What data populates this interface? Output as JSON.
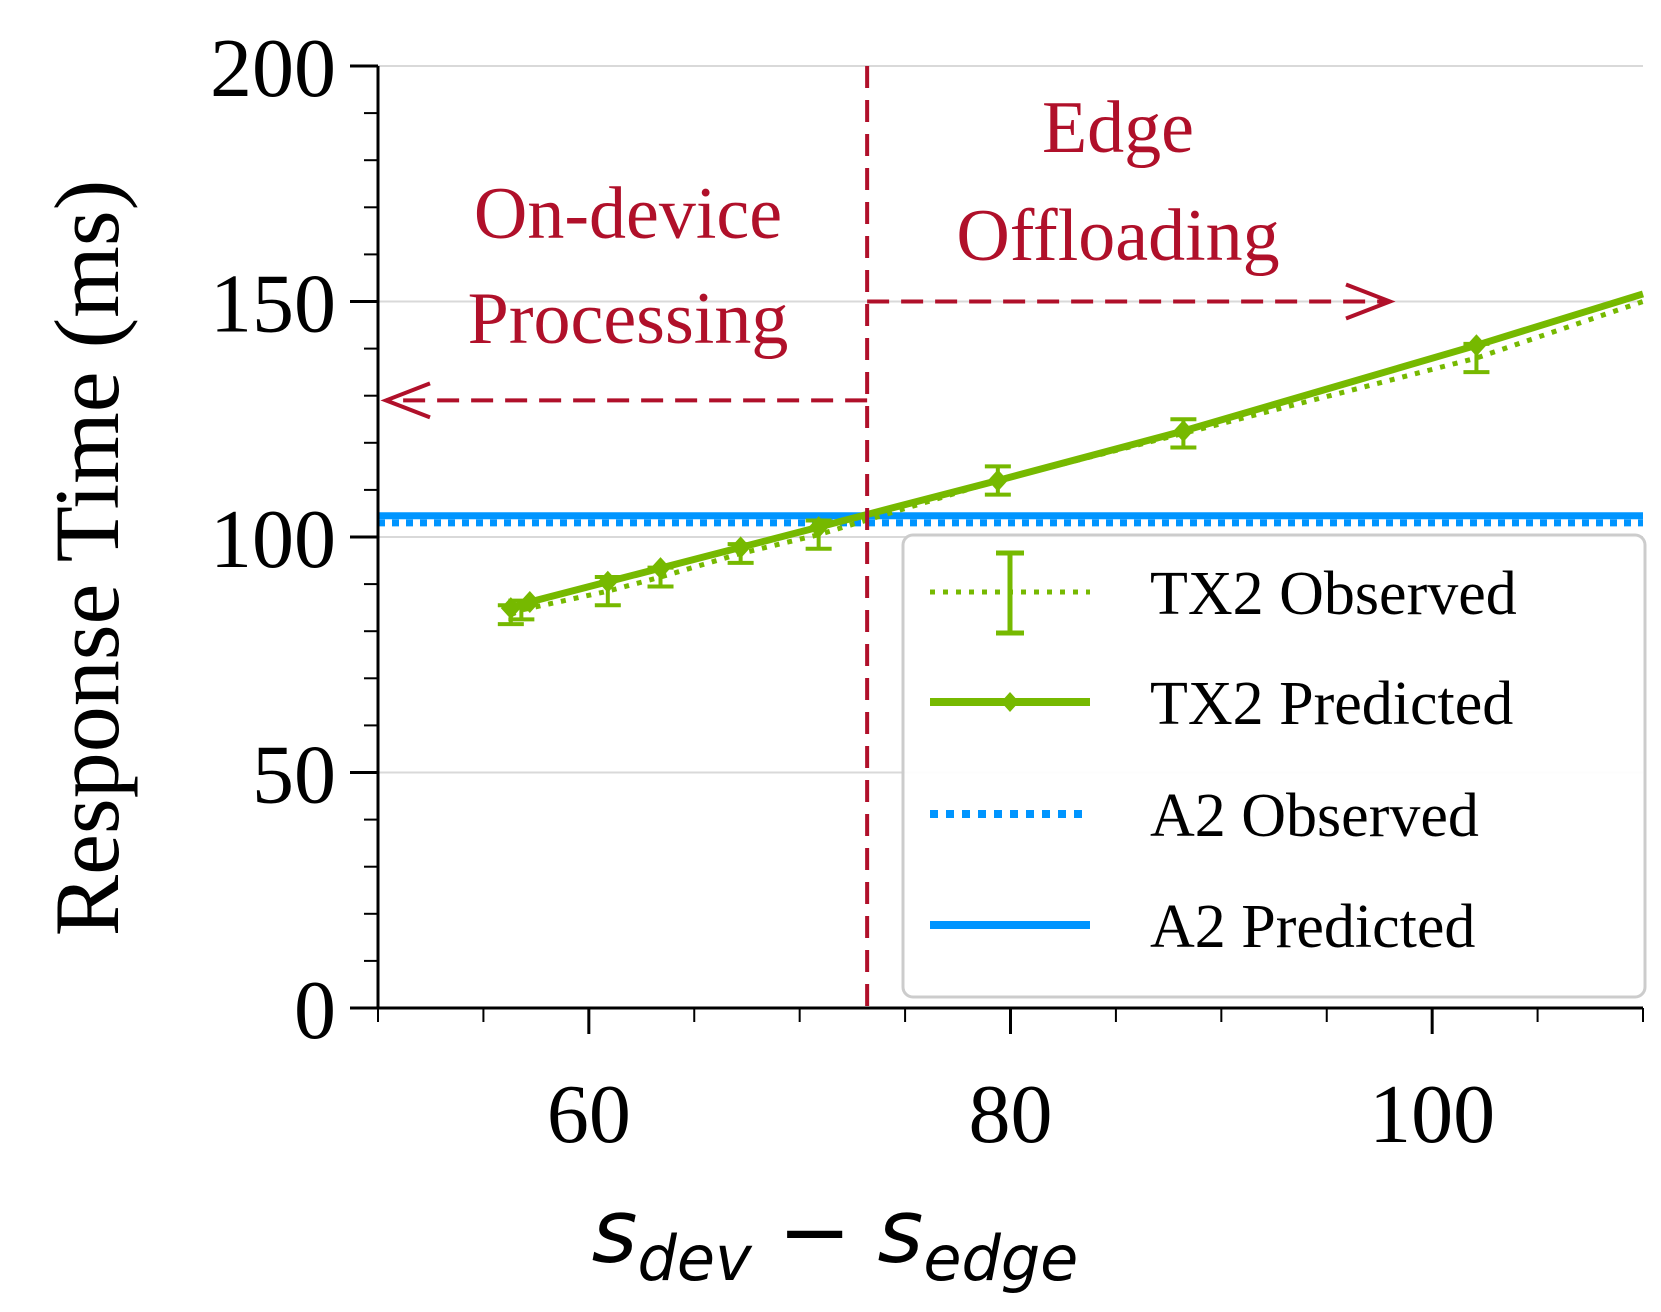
{
  "chart_data": {
    "type": "line",
    "title": "",
    "xlabel": {
      "base1": "s",
      "sub1": "dev",
      "op": "−",
      "base2": "s",
      "sub2": "edge"
    },
    "ylabel": "Response Time (ms)",
    "xlim": [
      50,
      110
    ],
    "ylim": [
      0,
      200
    ],
    "xticks": [
      "60",
      "80",
      "100"
    ],
    "yticks": [
      "0",
      "50",
      "100",
      "150",
      "200"
    ],
    "grid": "horizontal",
    "legend_position": "lower-right",
    "colors": {
      "tx2": "#76b900",
      "a2": "#0095ff",
      "annotation": "#b0102a"
    },
    "series": [
      {
        "name": "TX2 Observed",
        "style": "dotted-errorbar",
        "x": [
          56.3,
          56.8,
          60.9,
          63.4,
          67.2,
          70.9,
          79.4,
          88.2,
          102.1,
          110
        ],
        "y": [
          83.5,
          84.5,
          88.5,
          91.5,
          96.5,
          100.5,
          112,
          122,
          138,
          150
        ],
        "yerr": [
          2,
          2,
          3,
          2,
          2,
          3,
          3,
          3,
          3,
          0
        ]
      },
      {
        "name": "TX2 Predicted",
        "style": "solid-diamond",
        "x": [
          56.3,
          57.2,
          60.9,
          63.4,
          67.2,
          70.9,
          79.4,
          88.2,
          102.1,
          110
        ],
        "y": [
          84.9,
          86.2,
          90.5,
          93.4,
          97.8,
          102.1,
          112,
          122.5,
          140.7,
          151.6
        ],
        "markers": [
          true,
          true,
          true,
          true,
          true,
          true,
          true,
          true,
          true,
          false
        ]
      },
      {
        "name": "A2 Observed",
        "style": "dotted",
        "x": [
          50,
          110
        ],
        "y": [
          103,
          103
        ]
      },
      {
        "name": "A2 Predicted",
        "style": "solid",
        "x": [
          50,
          110
        ],
        "y": [
          104.5,
          104.5
        ]
      }
    ],
    "threshold": {
      "x": 73.2,
      "style": "dashed"
    },
    "annotations": {
      "left_lines": [
        "On-device",
        "Processing"
      ],
      "right_lines": [
        "Edge",
        "Offloading"
      ],
      "left_arrow_y": 129,
      "right_arrow_y": 150,
      "right_arrow_end_x": 98
    }
  }
}
